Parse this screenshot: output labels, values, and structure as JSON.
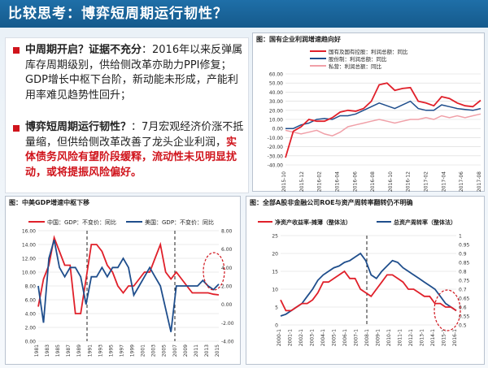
{
  "title": "比较思考：博弈短周期运行韧性？",
  "text": {
    "p1_head": "中周期开启？证据不充分",
    "p1_body": "：2016年以来反弹属库存周期级别，供给侧改革亦助力PPI修复；GDP增长中枢下台阶，新动能未形成，产能利用率难见趋势性回升；",
    "p2_head": "博弈短周期运行韧性？",
    "p2_body": "：7月宏观经济价涨不抵量缩，但供给侧改革改善了龙头企业利润，",
    "p2_red": "实体债务风险有望阶段缓释，流动性未见明显扰动，或将提振风险偏好。"
  },
  "colors": {
    "red": "#e0202a",
    "blue": "#1f4e8c",
    "gray": "#444444",
    "pink": "#f0a0a8",
    "accent": "#d0141c"
  },
  "charts": {
    "top": {
      "title": "图：国有企业利润增速趋向好",
      "legend": [
        "国有及国有控股：利润总额：同比",
        "股份制：利润总额：同比",
        "私营：利润总额：同比"
      ],
      "yticks": [
        "60.00",
        "50.00",
        "40.00",
        "30.00",
        "20.00",
        "10.00",
        "0.00",
        "-10.00",
        "-20.00",
        "-30.00",
        "-40.00"
      ],
      "xticks": [
        "2015-10",
        "2015-12",
        "2016-02",
        "2016-04",
        "2016-06",
        "2016-08",
        "2016-10",
        "2016-12",
        "2017-02",
        "2017-04",
        "2017-06",
        "2017-08"
      ]
    },
    "left": {
      "title": "图：中美GDP增速中枢下移",
      "legend": [
        "中国：GDP：不变价：同比",
        "美国：GDP：不变价：同比"
      ],
      "yticks": [
        "16.00",
        "14.00",
        "12.00",
        "10.00",
        "8.00",
        "6.00",
        "4.00",
        "2.00",
        "0.00"
      ],
      "y2ticks": [
        "8.00",
        "6.00",
        "4.00",
        "2.00",
        "0.00",
        "-2.00",
        "-4.00"
      ],
      "xticks": [
        "1981",
        "1983",
        "1985",
        "1987",
        "1989",
        "1991",
        "1993",
        "1995",
        "1997",
        "1999",
        "2001",
        "2003",
        "2005",
        "2007",
        "2009",
        "2011",
        "2013",
        "2015"
      ]
    },
    "right": {
      "title": "图：全部A股非金融公司ROE与资产周转率翻转仍不明确",
      "legend": [
        "净资产收益率-摊薄（整体法）",
        "总资产周转率（整体法）"
      ],
      "yticks": [
        "25",
        "20",
        "15",
        "10",
        "5",
        "0"
      ],
      "y2ticks": [
        "1",
        "0.95",
        "0.9",
        "0.85",
        "0.8",
        "0.75",
        "0.7",
        "0.65",
        "0.6",
        "0.55",
        "0.5"
      ],
      "xticks": [
        "2000-1",
        "2001-1",
        "2002-1",
        "2003-1",
        "2004-1",
        "2005-1",
        "2006-1",
        "2007-1",
        "2008-1",
        "2009-1",
        "2010-1",
        "2011-1",
        "2012-1",
        "2013-1",
        "2014-1",
        "2015-1",
        "2016-1"
      ]
    }
  }
}
